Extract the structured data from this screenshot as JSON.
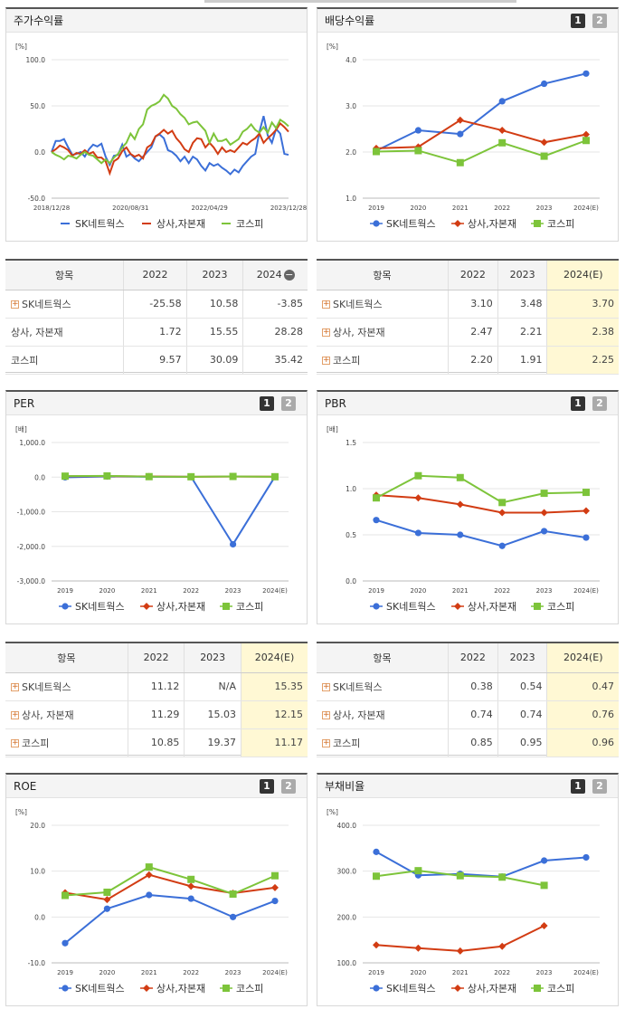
{
  "colors": {
    "sk": "#3b6fd8",
    "sangsa": "#d23c13",
    "kospi": "#7dc43a"
  },
  "legend": [
    "SK네트웍스",
    "상사,자본재",
    "코스피"
  ],
  "panels": {
    "stock": {
      "title": "주가수익률",
      "unit": "[%]"
    },
    "dividend": {
      "title": "배당수익률",
      "unit": "[%]",
      "btn1": "1",
      "btn2": "2"
    },
    "per": {
      "title": "PER",
      "unit": "[배]",
      "btn1": "1",
      "btn2": "2"
    },
    "pbr": {
      "title": "PBR",
      "unit": "[배]",
      "btn1": "1",
      "btn2": "2"
    },
    "roe": {
      "title": "ROE",
      "unit": "[%]",
      "btn1": "1",
      "btn2": "2"
    },
    "debt": {
      "title": "부채비율",
      "unit": "[%]",
      "btn1": "1",
      "btn2": "2"
    }
  },
  "tables": {
    "stock": {
      "head": [
        "항목",
        "2022",
        "2023",
        "2024"
      ],
      "rows": [
        {
          "name": "SK네트웍스",
          "plus": true,
          "v": [
            "-25.58",
            "10.58",
            "-3.85"
          ]
        },
        {
          "name": "상사, 자본재",
          "plus": false,
          "v": [
            "1.72",
            "15.55",
            "28.28"
          ]
        },
        {
          "name": "코스피",
          "plus": false,
          "v": [
            "9.57",
            "30.09",
            "35.42"
          ]
        }
      ]
    },
    "dividend": {
      "head": [
        "항목",
        "2022",
        "2023",
        "2024(E)"
      ],
      "rows": [
        {
          "name": "SK네트웍스",
          "plus": true,
          "v": [
            "3.10",
            "3.48",
            "3.70"
          ]
        },
        {
          "name": "상사, 자본재",
          "plus": true,
          "v": [
            "2.47",
            "2.21",
            "2.38"
          ]
        },
        {
          "name": "코스피",
          "plus": true,
          "v": [
            "2.20",
            "1.91",
            "2.25"
          ]
        }
      ]
    },
    "per": {
      "head": [
        "항목",
        "2022",
        "2023",
        "2024(E)"
      ],
      "rows": [
        {
          "name": "SK네트웍스",
          "plus": true,
          "v": [
            "11.12",
            "N/A",
            "15.35"
          ]
        },
        {
          "name": "상사, 자본재",
          "plus": true,
          "v": [
            "11.29",
            "15.03",
            "12.15"
          ]
        },
        {
          "name": "코스피",
          "plus": true,
          "v": [
            "10.85",
            "19.37",
            "11.17"
          ]
        }
      ]
    },
    "pbr": {
      "head": [
        "항목",
        "2022",
        "2023",
        "2024(E)"
      ],
      "rows": [
        {
          "name": "SK네트웍스",
          "plus": true,
          "v": [
            "0.38",
            "0.54",
            "0.47"
          ]
        },
        {
          "name": "상사, 자본재",
          "plus": true,
          "v": [
            "0.74",
            "0.74",
            "0.76"
          ]
        },
        {
          "name": "코스피",
          "plus": true,
          "v": [
            "0.85",
            "0.95",
            "0.96"
          ]
        }
      ]
    }
  },
  "chart_data": [
    {
      "id": "stock",
      "type": "line",
      "xlabel": "",
      "ylabel": "[%]",
      "ylim": [
        -50,
        100
      ],
      "yticks": [
        "100.0",
        "50.0",
        "0.0",
        "-50.0"
      ],
      "xticks": [
        "2018/12/28",
        "2020/08/31",
        "2022/04/29",
        "2023/12/28"
      ],
      "series": [
        {
          "name": "SK네트웍스",
          "values": [
            0,
            12,
            12,
            14,
            5,
            -3,
            -2,
            0,
            -5,
            3,
            8,
            6,
            9,
            -5,
            -14,
            -4,
            -3,
            8,
            -5,
            -2,
            -7,
            -10,
            -5,
            0,
            5,
            17,
            19,
            15,
            2,
            0,
            -4,
            -10,
            -5,
            -12,
            -5,
            -8,
            -15,
            -20,
            -12,
            -15,
            -13,
            -17,
            -20,
            -24,
            -19,
            -22,
            -15,
            -10,
            -5,
            -2,
            22,
            39,
            18,
            10,
            25,
            20,
            -2,
            -3
          ]
        },
        {
          "name": "상사,자본재",
          "values": [
            0,
            3,
            7,
            5,
            2,
            -4,
            -1,
            -2,
            2,
            -2,
            0,
            -6,
            -6,
            -10,
            -23,
            -10,
            -7,
            1,
            5,
            -2,
            -5,
            -3,
            -7,
            5,
            8,
            17,
            20,
            24,
            20,
            23,
            15,
            10,
            3,
            0,
            10,
            15,
            14,
            5,
            10,
            5,
            -2,
            5,
            0,
            2,
            0,
            5,
            10,
            8,
            12,
            15,
            20,
            10,
            15,
            19,
            24,
            31,
            27,
            22
          ]
        },
        {
          "name": "코스피",
          "values": [
            0,
            -3,
            -5,
            -8,
            -4,
            -5,
            -7,
            -3,
            0,
            -3,
            -4,
            -8,
            -12,
            -8,
            -12,
            -6,
            -2,
            5,
            10,
            20,
            14,
            25,
            30,
            46,
            50,
            52,
            55,
            62,
            58,
            50,
            47,
            41,
            37,
            30,
            32,
            33,
            28,
            23,
            10,
            20,
            12,
            12,
            14,
            8,
            11,
            14,
            22,
            25,
            30,
            24,
            21,
            27,
            21,
            32,
            26,
            35,
            32,
            28
          ]
        }
      ]
    },
    {
      "id": "dividend",
      "type": "line",
      "ylabel": "[%]",
      "ylim": [
        1,
        4
      ],
      "yticks": [
        "4.0",
        "3.0",
        "2.0",
        "1.0"
      ],
      "categories": [
        "2019",
        "2020",
        "2021",
        "2022",
        "2023",
        "2024(E)"
      ],
      "series": [
        {
          "name": "SK네트웍스",
          "values": [
            2.03,
            2.47,
            2.39,
            3.1,
            3.48,
            3.7
          ]
        },
        {
          "name": "상사,자본재",
          "values": [
            2.08,
            2.11,
            2.69,
            2.47,
            2.21,
            2.38
          ]
        },
        {
          "name": "코스피",
          "values": [
            2.01,
            2.03,
            1.77,
            2.2,
            1.91,
            2.25
          ]
        }
      ]
    },
    {
      "id": "per",
      "type": "line",
      "ylabel": "[배]",
      "ylim": [
        -3000,
        1000
      ],
      "yticks": [
        "1,000.0",
        "0.0",
        "-1,000.0",
        "-2,000.0",
        "-3,000.0"
      ],
      "categories": [
        "2019",
        "2020",
        "2021",
        "2022",
        "2023",
        "2024(E)"
      ],
      "series": [
        {
          "name": "SK네트웍스",
          "values": [
            -5,
            20,
            10,
            11.12,
            -1940,
            15.35
          ]
        },
        {
          "name": "상사,자본재",
          "values": [
            25,
            30,
            18,
            11.29,
            15.03,
            12.15
          ]
        },
        {
          "name": "코스피",
          "values": [
            28,
            35,
            14,
            10.85,
            19.37,
            11.17
          ]
        }
      ]
    },
    {
      "id": "pbr",
      "type": "line",
      "ylabel": "[배]",
      "ylim": [
        0,
        1.5
      ],
      "yticks": [
        "1.5",
        "1.0",
        "0.5",
        "0.0"
      ],
      "categories": [
        "2019",
        "2020",
        "2021",
        "2022",
        "2023",
        "2024(E)"
      ],
      "series": [
        {
          "name": "SK네트웍스",
          "values": [
            0.66,
            0.52,
            0.5,
            0.38,
            0.54,
            0.47
          ]
        },
        {
          "name": "상사,자본재",
          "values": [
            0.93,
            0.9,
            0.83,
            0.74,
            0.74,
            0.76
          ]
        },
        {
          "name": "코스피",
          "values": [
            0.9,
            1.14,
            1.12,
            0.85,
            0.95,
            0.96
          ]
        }
      ]
    },
    {
      "id": "roe",
      "type": "line",
      "ylabel": "[%]",
      "ylim": [
        -10,
        20
      ],
      "yticks": [
        "20.0",
        "10.0",
        "0.0",
        "-10.0"
      ],
      "categories": [
        "2019",
        "2020",
        "2021",
        "2022",
        "2023",
        "2024(E)"
      ],
      "series": [
        {
          "name": "SK네트웍스",
          "values": [
            -5.7,
            1.8,
            4.8,
            4.0,
            0.0,
            3.5
          ]
        },
        {
          "name": "상사,자본재",
          "values": [
            5.3,
            3.8,
            9.2,
            6.7,
            5.2,
            6.4
          ]
        },
        {
          "name": "코스피",
          "values": [
            4.7,
            5.4,
            10.9,
            8.2,
            5.0,
            9.0
          ]
        }
      ]
    },
    {
      "id": "debt",
      "type": "line",
      "ylabel": "[%]",
      "ylim": [
        100,
        400
      ],
      "yticks": [
        "400.0",
        "300.0",
        "200.0",
        "100.0"
      ],
      "categories": [
        "2019",
        "2020",
        "2021",
        "2022",
        "2023",
        "2024(E)"
      ],
      "series": [
        {
          "name": "SK네트웍스",
          "values": [
            342,
            291,
            294,
            288,
            323,
            330
          ]
        },
        {
          "name": "상사,자본재",
          "values": [
            139,
            132,
            126,
            136,
            181,
            null
          ]
        },
        {
          "name": "코스피",
          "values": [
            289,
            301,
            290,
            287,
            269,
            null
          ]
        }
      ]
    }
  ]
}
